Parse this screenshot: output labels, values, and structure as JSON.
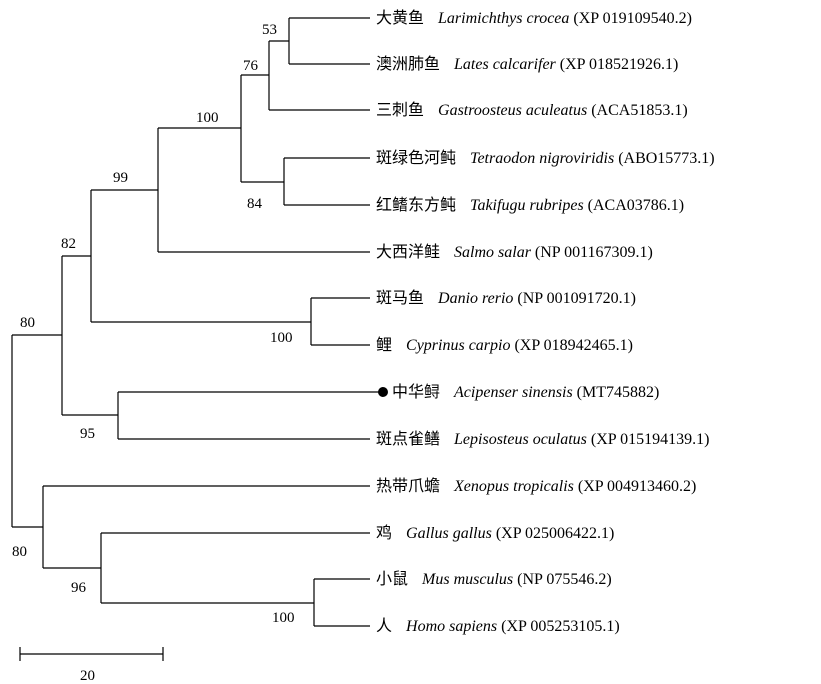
{
  "tree": {
    "taxa": [
      {
        "common": "大黄鱼",
        "scientific": "Larimichthys crocea",
        "accession": "(XP 019109540.2)"
      },
      {
        "common": "澳洲肺鱼",
        "scientific": "Lates calcarifer",
        "accession": "(XP 018521926.1)"
      },
      {
        "common": "三刺鱼",
        "scientific": "Gastroosteus aculeatus",
        "accession": "(ACA51853.1)"
      },
      {
        "common": "斑绿色河鲀",
        "scientific": "Tetraodon nigroviridis",
        "accession": "(ABO15773.1)"
      },
      {
        "common": "红鳍东方鲀",
        "scientific": "Takifugu rubripes",
        "accession": "(ACA03786.1)"
      },
      {
        "common": "大西洋鲑",
        "scientific": "Salmo salar",
        "accession": "(NP 001167309.1)"
      },
      {
        "common": "斑马鱼",
        "scientific": "Danio rerio",
        "accession": "(NP 001091720.1)"
      },
      {
        "common": "鲤",
        "scientific": "Cyprinus carpio",
        "accession": "(XP 018942465.1)"
      },
      {
        "common": "中华鲟",
        "scientific": "Acipenser sinensis",
        "accession": "(MT745882)",
        "highlight": true
      },
      {
        "common": "斑点雀鳝",
        "scientific": "Lepisosteus oculatus",
        "accession": "(XP 015194139.1)"
      },
      {
        "common": "热带爪蟾",
        "scientific": "Xenopus tropicalis",
        "accession": "(XP 004913460.2)"
      },
      {
        "common": "鸡",
        "scientific": "Gallus gallus",
        "accession": "(XP 025006422.1)"
      },
      {
        "common": "小鼠",
        "scientific": "Mus musculus",
        "accession": "(NP 075546.2)"
      },
      {
        "common": "人",
        "scientific": "Homo sapiens",
        "accession": "(XP 005253105.1)"
      }
    ],
    "support_values": {
      "larimichthys_lates": "53",
      "perciform_clade": "76",
      "percomorph_clade": "100",
      "tetraodontid_clade": "84",
      "salmo_plus": "99",
      "actinopterygii_core": "82",
      "cyprinid_clade": "100",
      "root_upper": "80",
      "acipenser_lepisosteus": "95",
      "tetrapod_clade": "80",
      "gallus_mammal": "96",
      "mammal_clade": "100"
    },
    "scale_bar_label": "20"
  }
}
